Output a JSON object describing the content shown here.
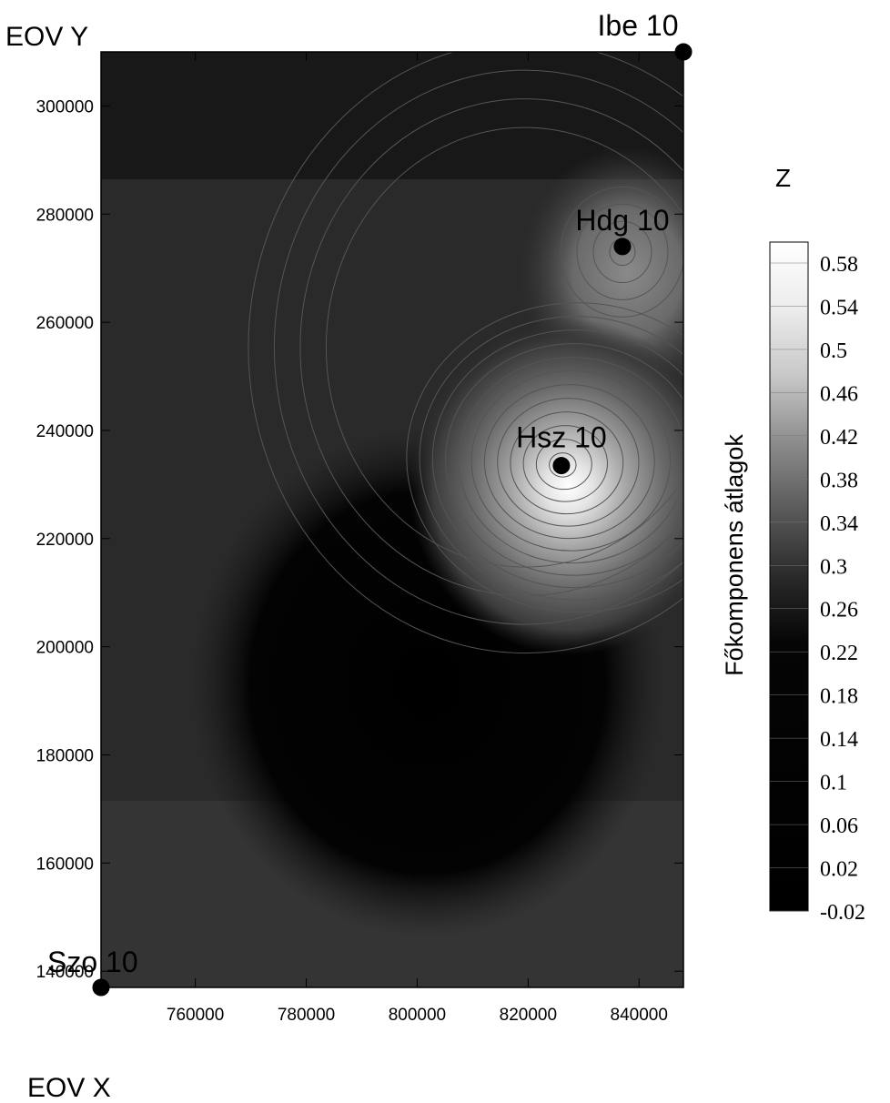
{
  "chart_data": {
    "type": "heatmap",
    "xlabel": "EOV X",
    "ylabel": "EOV Y",
    "xlim": [
      743000,
      848000
    ],
    "ylim": [
      137000,
      310000
    ],
    "x_ticks": [
      760000,
      780000,
      800000,
      820000,
      840000
    ],
    "y_ticks": [
      140000,
      160000,
      180000,
      200000,
      220000,
      240000,
      260000,
      280000,
      300000
    ],
    "x_tick_labels": [
      "760000",
      "780000",
      "800000",
      "820000",
      "840000"
    ],
    "y_tick_labels": [
      "140000",
      "160000",
      "180000",
      "200000",
      "220000",
      "240000",
      "260000",
      "280000",
      "300000"
    ],
    "stations": [
      {
        "label": "Ibe 10",
        "x": 848000,
        "y": 310000
      },
      {
        "label": "Hdg 10",
        "x": 837000,
        "y": 274000
      },
      {
        "label": "Hsz 10",
        "x": 826000,
        "y": 233500
      },
      {
        "label": "Szo 10",
        "x": 743000,
        "y": 137000
      }
    ],
    "colorbar": {
      "title": "Z",
      "label": "Főkomponens átlagok",
      "levels": [
        "0.58",
        "0.54",
        "0.5",
        "0.46",
        "0.42",
        "0.38",
        "0.34",
        "0.3",
        "0.26",
        "0.22",
        "0.18",
        "0.14",
        "0.1",
        "0.06",
        "0.02",
        "-0.02"
      ],
      "range": [
        -0.02,
        0.62
      ],
      "colormap": "grayscale (black = low, white = high)"
    },
    "peak_value_at": "Hsz 10",
    "colors": {
      "low": "#000000",
      "high": "#ffffff",
      "background_field": "#262626"
    }
  }
}
